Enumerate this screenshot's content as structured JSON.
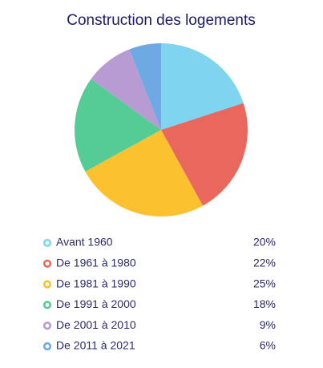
{
  "chart_data": {
    "type": "pie",
    "title": "Construction des logements",
    "categories": [
      "Avant 1960",
      "De 1961 à 1980",
      "De 1981 à 1990",
      "De 1991 à 2000",
      "De 2001 à 2010",
      "De 2011 à 2021"
    ],
    "values": [
      20,
      22,
      25,
      18,
      9,
      6
    ],
    "value_labels": [
      "20%",
      "22%",
      "25%",
      "18%",
      "9%",
      "6%"
    ],
    "colors": [
      "#7fd4ef",
      "#e9675d",
      "#fcc12e",
      "#55cc96",
      "#b89bd2",
      "#6fa9e3"
    ]
  }
}
